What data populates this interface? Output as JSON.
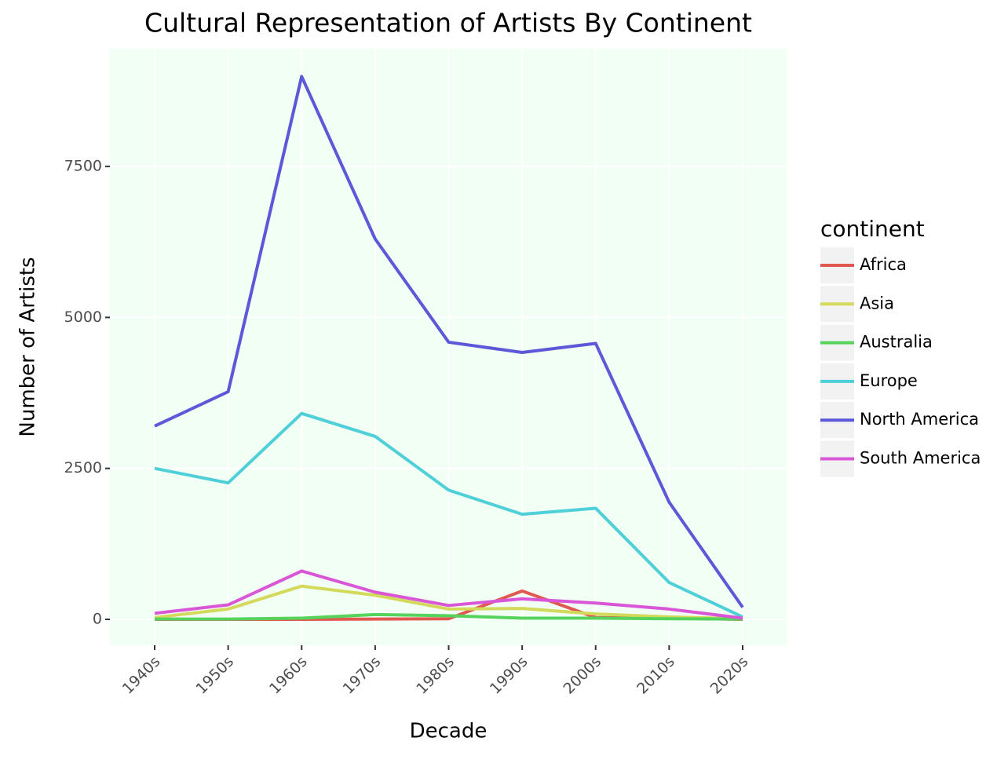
{
  "chart_data": {
    "type": "line",
    "title": "Cultural Representation of Artists By Continent",
    "x_label": "Decade",
    "y_label": "Number of Artists",
    "legend_title": "continent",
    "categories": [
      "1940s",
      "1950s",
      "1960s",
      "1970s",
      "1980s",
      "1990s",
      "2000s",
      "2010s",
      "2020s"
    ],
    "ylim": [
      -429,
      9451
    ],
    "yticks": [
      0,
      2500,
      5000,
      7500
    ],
    "grid": true,
    "series": [
      {
        "name": "Africa",
        "color": "#e0584f",
        "values": [
          0,
          0,
          0,
          5,
          10,
          470,
          30,
          20,
          0
        ]
      },
      {
        "name": "Asia",
        "color": "#d3d95a",
        "values": [
          30,
          170,
          550,
          400,
          170,
          180,
          90,
          40,
          10
        ]
      },
      {
        "name": "Australia",
        "color": "#55d35d",
        "values": [
          5,
          5,
          20,
          80,
          60,
          20,
          20,
          10,
          5
        ]
      },
      {
        "name": "Europe",
        "color": "#4fd0d8",
        "values": [
          2500,
          2260,
          3410,
          3030,
          2140,
          1740,
          1840,
          610,
          40
        ]
      },
      {
        "name": "North America",
        "color": "#5d58d7",
        "values": [
          3200,
          3770,
          8990,
          6300,
          4590,
          4420,
          4570,
          1940,
          200
        ]
      },
      {
        "name": "South America",
        "color": "#d957d6",
        "values": [
          100,
          240,
          800,
          450,
          230,
          340,
          270,
          170,
          20
        ]
      }
    ]
  }
}
